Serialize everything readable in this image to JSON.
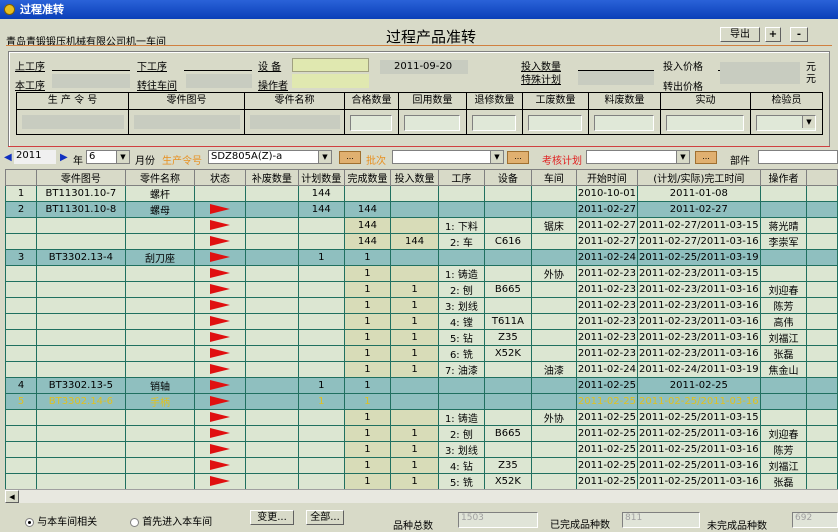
{
  "window": {
    "title": "过程准转"
  },
  "header": {
    "company": "青岛青锻锻压机械有限公司机一车间",
    "title": "过程产品准转",
    "export": "导出",
    "plus": "+",
    "minus": "-"
  },
  "form": {
    "prev_op": "上工序",
    "next_op": "下工序",
    "equipment": "设 备",
    "date": "2011-09-20",
    "input_qty": "投入数量",
    "input_price": "投入价格",
    "yuan1": "元",
    "this_op": "本工序",
    "to_workshop": "转往车间",
    "operator": "操作者",
    "special_plan": "特殊计划",
    "out_price": "转出价格",
    "yuan2": "元",
    "cols": [
      "生 产 令 号",
      "零件图号",
      "零件名称",
      "合格数量",
      "回用数量",
      "退修数量",
      "工废数量",
      "料废数量",
      "实动",
      "检验员"
    ]
  },
  "filter": {
    "year": "2011",
    "year_label": "年",
    "month": "6",
    "month_label": "月份",
    "order_label": "生产令号",
    "order": "SDZ805A(Z)-a",
    "batch_label": "批次",
    "batch": "",
    "plan_label": "考核计划",
    "plan": "",
    "part_label": "部件",
    "part": "",
    "more": "..."
  },
  "grid": {
    "columns": [
      "",
      "零件图号",
      "零件名称",
      "状态",
      "补废数量",
      "计划数量",
      "完成数量",
      "投入数量",
      "工序",
      "设备",
      "车间",
      "开始时间",
      "(计划/实际)完工时间",
      "操作者",
      ""
    ],
    "rows": [
      {
        "type": "item",
        "n": "1",
        "part": "BT11301.10-7",
        "name": "螺杆",
        "flag": false,
        "plan": "144",
        "done": "",
        "input": "",
        "op": "",
        "eq": "",
        "ws": "",
        "start": "2010-10-01",
        "finish": "2011-01-08",
        "who": ""
      },
      {
        "type": "group",
        "n": "2",
        "part": "BT11301.10-8",
        "name": "螺母",
        "flag": true,
        "plan": "144",
        "done": "144",
        "input": "",
        "op": "",
        "eq": "",
        "ws": "",
        "start": "2011-02-27",
        "finish": "2011-02-27",
        "who": ""
      },
      {
        "type": "sub",
        "n": "",
        "part": "",
        "name": "",
        "flag": true,
        "plan": "",
        "done": "144",
        "input": "",
        "op": "1: 下料",
        "eq": "",
        "ws": "锯床",
        "start": "2011-02-27",
        "finish": "2011-02-27/2011-03-15",
        "who": "蒋光晴"
      },
      {
        "type": "sub",
        "n": "",
        "part": "",
        "name": "",
        "flag": true,
        "plan": "",
        "done": "144",
        "input": "144",
        "op": "2: 车",
        "eq": "C616",
        "ws": "",
        "start": "2011-02-27",
        "finish": "2011-02-27/2011-03-16",
        "who": "李崇军"
      },
      {
        "type": "group",
        "n": "3",
        "part": "BT3302.13-4",
        "name": "刮刀座",
        "flag": true,
        "plan": "1",
        "done": "1",
        "input": "",
        "op": "",
        "eq": "",
        "ws": "",
        "start": "2011-02-24",
        "finish": "2011-02-25/2011-03-19",
        "who": ""
      },
      {
        "type": "sub",
        "n": "",
        "part": "",
        "name": "",
        "flag": true,
        "plan": "",
        "done": "1",
        "input": "",
        "op": "1: 铸造",
        "eq": "",
        "ws": "外协",
        "start": "2011-02-23",
        "finish": "2011-02-23/2011-03-15",
        "who": ""
      },
      {
        "type": "sub",
        "n": "",
        "part": "",
        "name": "",
        "flag": true,
        "plan": "",
        "done": "1",
        "input": "1",
        "op": "2: 刨",
        "eq": "B665",
        "ws": "",
        "start": "2011-02-23",
        "finish": "2011-02-23/2011-03-16",
        "who": "刘迎春"
      },
      {
        "type": "sub",
        "n": "",
        "part": "",
        "name": "",
        "flag": true,
        "plan": "",
        "done": "1",
        "input": "1",
        "op": "3: 划线",
        "eq": "",
        "ws": "",
        "start": "2011-02-23",
        "finish": "2011-02-23/2011-03-16",
        "who": "陈芳"
      },
      {
        "type": "sub",
        "n": "",
        "part": "",
        "name": "",
        "flag": true,
        "plan": "",
        "done": "1",
        "input": "1",
        "op": "4: 镗",
        "eq": "T611A",
        "ws": "",
        "start": "2011-02-23",
        "finish": "2011-02-23/2011-03-16",
        "who": "高伟"
      },
      {
        "type": "sub",
        "n": "",
        "part": "",
        "name": "",
        "flag": true,
        "plan": "",
        "done": "1",
        "input": "1",
        "op": "5: 钻",
        "eq": "Z35",
        "ws": "",
        "start": "2011-02-23",
        "finish": "2011-02-23/2011-03-16",
        "who": "刘福江"
      },
      {
        "type": "sub",
        "n": "",
        "part": "",
        "name": "",
        "flag": true,
        "plan": "",
        "done": "1",
        "input": "1",
        "op": "6: 铣",
        "eq": "X52K",
        "ws": "",
        "start": "2011-02-23",
        "finish": "2011-02-23/2011-03-16",
        "who": "张磊"
      },
      {
        "type": "sub",
        "n": "",
        "part": "",
        "name": "",
        "flag": true,
        "plan": "",
        "done": "1",
        "input": "1",
        "op": "7: 油漆",
        "eq": "",
        "ws": "油漆",
        "start": "2011-02-24",
        "finish": "2011-02-24/2011-03-19",
        "who": "焦金山"
      },
      {
        "type": "group",
        "n": "4",
        "part": "BT3302.13-5",
        "name": "销轴",
        "flag": true,
        "plan": "1",
        "done": "1",
        "input": "",
        "op": "",
        "eq": "",
        "ws": "",
        "start": "2011-02-25",
        "finish": "2011-02-25",
        "who": ""
      },
      {
        "type": "group hl",
        "n": "5",
        "part": "BT3302.14-6",
        "name": "手柄",
        "flag": true,
        "plan": "1",
        "done": "1",
        "input": "",
        "op": "",
        "eq": "",
        "ws": "",
        "start": "2011-02-25",
        "finish": "2011-02-25/2011-03-16",
        "who": ""
      },
      {
        "type": "sub",
        "n": "",
        "part": "",
        "name": "",
        "flag": true,
        "plan": "",
        "done": "1",
        "input": "",
        "op": "1: 铸造",
        "eq": "",
        "ws": "外协",
        "start": "2011-02-25",
        "finish": "2011-02-25/2011-03-15",
        "who": ""
      },
      {
        "type": "sub",
        "n": "",
        "part": "",
        "name": "",
        "flag": true,
        "plan": "",
        "done": "1",
        "input": "1",
        "op": "2: 刨",
        "eq": "B665",
        "ws": "",
        "start": "2011-02-25",
        "finish": "2011-02-25/2011-03-16",
        "who": "刘迎春"
      },
      {
        "type": "sub",
        "n": "",
        "part": "",
        "name": "",
        "flag": true,
        "plan": "",
        "done": "1",
        "input": "1",
        "op": "3: 划线",
        "eq": "",
        "ws": "",
        "start": "2011-02-25",
        "finish": "2011-02-25/2011-03-16",
        "who": "陈芳"
      },
      {
        "type": "sub",
        "n": "",
        "part": "",
        "name": "",
        "flag": true,
        "plan": "",
        "done": "1",
        "input": "1",
        "op": "4: 钻",
        "eq": "Z35",
        "ws": "",
        "start": "2011-02-25",
        "finish": "2011-02-25/2011-03-16",
        "who": "刘福江"
      },
      {
        "type": "sub",
        "n": "",
        "part": "",
        "name": "",
        "flag": true,
        "plan": "",
        "done": "1",
        "input": "1",
        "op": "5: 铣",
        "eq": "X52K",
        "ws": "",
        "start": "2011-02-25",
        "finish": "2011-02-25/2011-03-16",
        "who": "张磊"
      }
    ]
  },
  "footer": {
    "radio1": "与本车间相关",
    "radio2": "首先进入本车间",
    "change": "变更...",
    "all": "全部...",
    "total_label": "品种总数",
    "total": "1503",
    "done_label": "已完成品种数",
    "done": "811",
    "undone_label": "未完成品种数",
    "undone": "692"
  },
  "colors": {
    "title_bar": "#0a3fb8",
    "group_row": "#8fbfbf",
    "flag": "#e01010",
    "highlight_text": "#e0c020"
  }
}
